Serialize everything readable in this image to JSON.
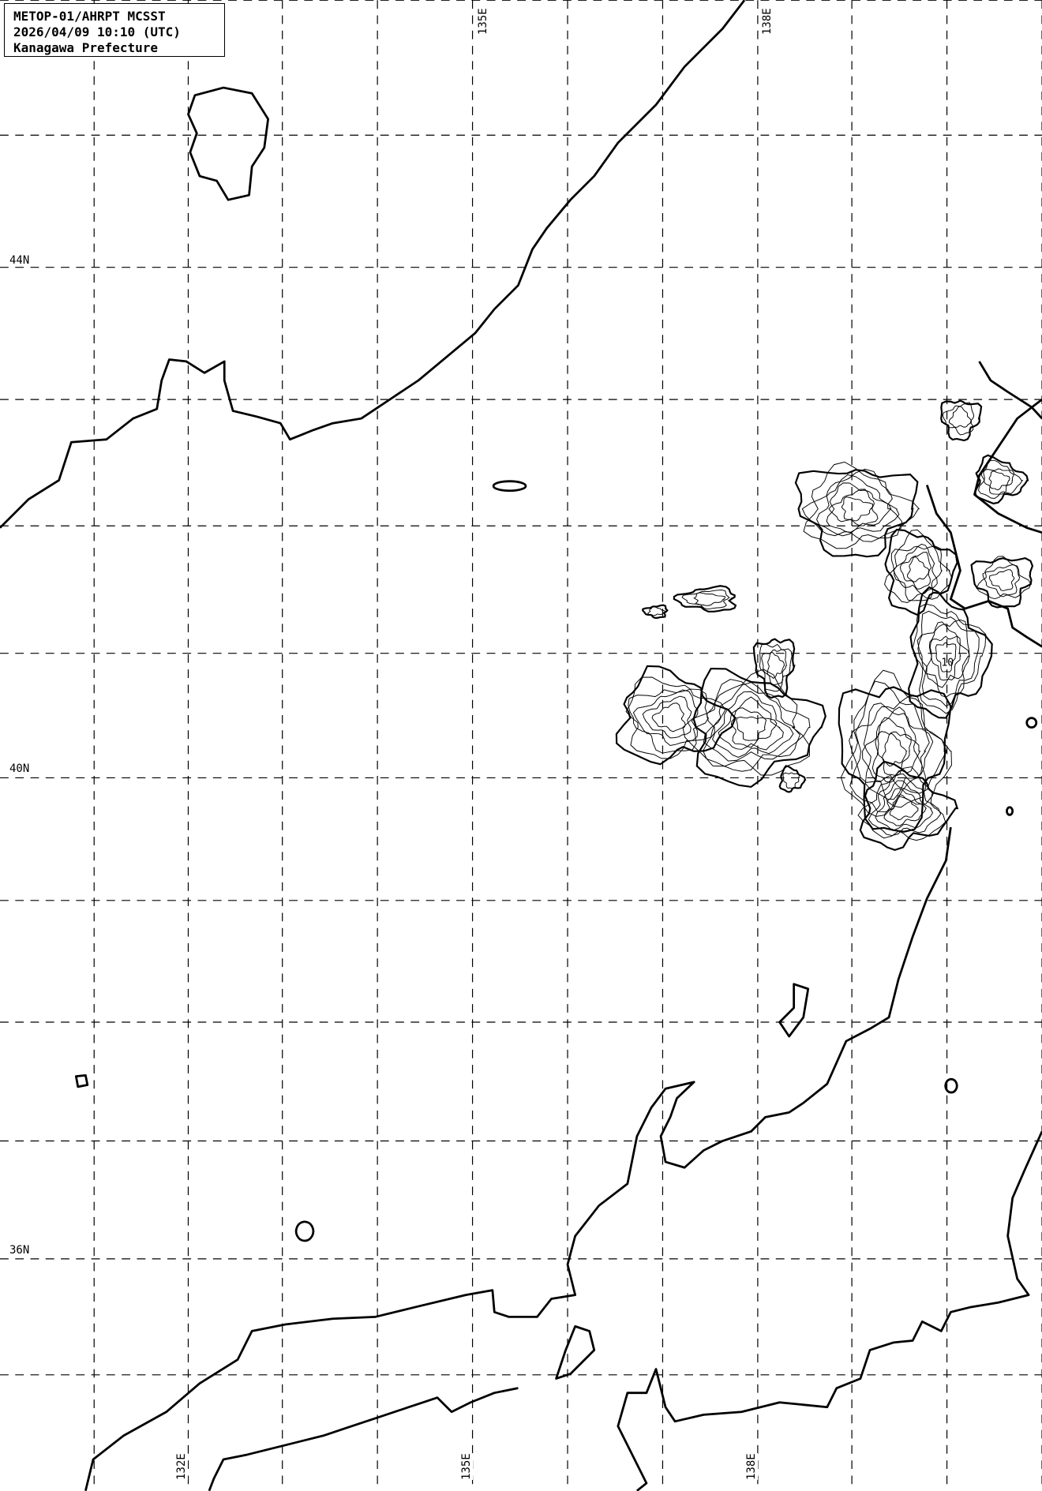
{
  "header": {
    "line1": "METOP-01/AHRPT MCSST",
    "line2": "2026/04/09 10:10 (UTC)",
    "line3": "Kanagawa Prefecture"
  },
  "axes": {
    "lat_labels": [
      "44N",
      "40N",
      "36N"
    ],
    "lon_labels_top": [
      "135E",
      "138E"
    ],
    "lon_labels_bottom": [
      "132E",
      "135E",
      "138E"
    ]
  },
  "contour_labels": [
    "10"
  ],
  "colors": {
    "line": "#000000",
    "background": "#ffffff"
  }
}
